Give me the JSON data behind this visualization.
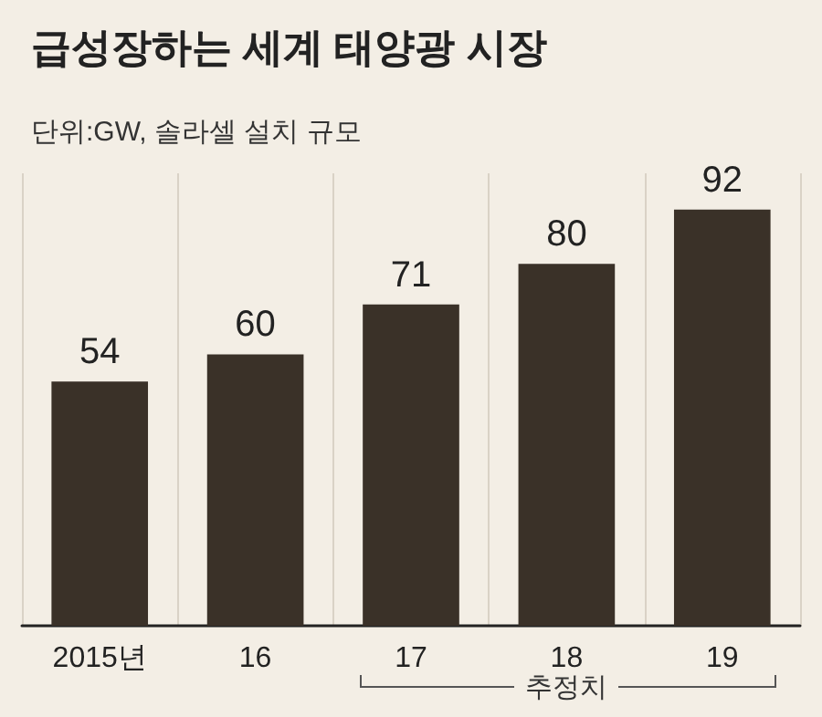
{
  "chart_data": {
    "type": "bar",
    "title": "급성장하는 세계 태양광 시장",
    "subtitle": "단위:GW, 솔라셀 설치 규모",
    "categories": [
      "2015년",
      "16",
      "17",
      "18",
      "19"
    ],
    "values": [
      54,
      60,
      71,
      80,
      92
    ],
    "color": "#3a3128",
    "data_labels": true,
    "grid": "x",
    "annotations": [
      "추정치"
    ]
  }
}
